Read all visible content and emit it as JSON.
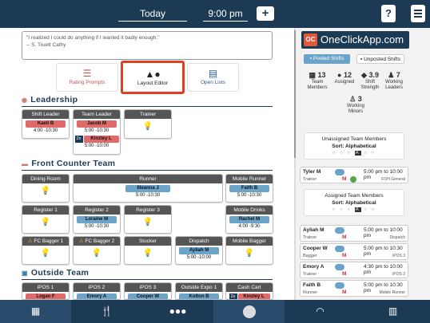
{
  "header": {
    "date": "Today",
    "time": "9:00 pm",
    "add_label": "+",
    "help_label": "?",
    "menu_icon": "hamburger-icon"
  },
  "quote": {
    "line1": "\"I realized I could do anything if I wanted it badly enough.\"",
    "line2": "-- S. Truett Cathy"
  },
  "tabs": [
    {
      "label": "Rating Prompts",
      "icon": "checklist-icon"
    },
    {
      "label": "Layout Editor",
      "icon": "shapes-icon"
    },
    {
      "label": "Open Lists",
      "icon": "clipboard-icon"
    }
  ],
  "sections": {
    "leadership": "Leadership",
    "front_counter": "Front Counter Team",
    "outside": "Outside Team"
  },
  "leadership": {
    "shift_leader": {
      "title": "Shift Leader",
      "name": "Kaeli B",
      "time": "4:00 -10:30"
    },
    "team_leader": {
      "title": "Team Leader",
      "name1": "Jacob M",
      "time1": "5:00 -10:30",
      "multi": "2x",
      "name2": "Kinzley L",
      "time2": "5:00 -10:00"
    },
    "trainer": {
      "title": "Trainer"
    }
  },
  "front_counter": {
    "dining_room": "Dining Room",
    "runner": {
      "title": "Runner",
      "name": "Illeanna J",
      "time": "5:00 -10:30"
    },
    "mobile_runner": {
      "title": "Mobile Runner",
      "name": "Faith B",
      "time": "5:00 -10:30"
    },
    "register1": "Register 1",
    "register2": {
      "title": "Register 2",
      "name": "Loraine M",
      "time": "5:00 -10:30"
    },
    "register3": "Register 3",
    "mobile_drinks": {
      "title": "Mobile Drinks",
      "name": "Rachel M",
      "time": "4:00 -9:30"
    },
    "fc_bagger1": "FC Bagger 1",
    "fc_bagger2": "FC Bagger 2",
    "stocker": "Stocker",
    "dispatch": {
      "title": "Dispatch",
      "name": "Ayliah M",
      "time": "5:00 -10:00"
    },
    "mobile_bagger": "Mobile Bagger"
  },
  "outside": {
    "ipos1": {
      "title": "iPOS 1",
      "name": "Logan F"
    },
    "ipos2": {
      "title": "iPOS 2",
      "name": "Emory A"
    },
    "ipos3": {
      "title": "iPOS 3",
      "name": "Cooper W"
    },
    "outside_expo1": {
      "title": "Outside Expo 1",
      "name": "Kolton B"
    },
    "cash_cart": {
      "title": "Cash Cart",
      "multi": "2x",
      "name": "Kinzley L"
    }
  },
  "ad": {
    "logo": "OC",
    "text": "OneClickApp.com"
  },
  "shift_toggle": {
    "posted": "Posted Shifts",
    "unposted": "Unposted Shifts"
  },
  "stats": [
    {
      "value": "13",
      "label": "Team Members"
    },
    {
      "value": "12",
      "label": "Assigned"
    },
    {
      "value": "3.9",
      "label": "Shift Strength"
    },
    {
      "value": "7",
      "label": "Working Leaders"
    },
    {
      "value": "3",
      "label": "Working Minors"
    }
  ],
  "unassigned": {
    "title": "Unassigned Team Members",
    "sort": "Sort: Alphabetical",
    "dots": "○ ○ ○",
    "current": "A",
    "dots2": "○ ○"
  },
  "assigned": {
    "title": "Assigned Team Members",
    "sort": "Sort: Alphabetical",
    "dots": "○ ○ ○",
    "current": "A",
    "dots2": "○ ○"
  },
  "members": [
    {
      "name": "Tyler M",
      "role": "Trainer",
      "mark": "M",
      "time": "5:00 pm to 10:00 pm",
      "position": "FOH General"
    },
    {
      "name": "Ayliah M",
      "role": "Trainer",
      "mark": "M",
      "time": "5:00 pm to 10:00 pm",
      "position": "Dispatch"
    },
    {
      "name": "Cooper W",
      "role": "Bagger",
      "mark": "M",
      "time": "5:00 pm to 10:30 pm",
      "position": "iPOS 3"
    },
    {
      "name": "Emory A",
      "role": "Trainer",
      "mark": "M",
      "time": "4:30 pm to 10:00 pm",
      "position": "iPOS 2"
    },
    {
      "name": "Faith B",
      "role": "Runner",
      "mark": "M",
      "time": "5:00 pm to 10:30 pm",
      "position": "Mobile Runner"
    }
  ],
  "bottom_nav": [
    {
      "icon": "calendar-icon"
    },
    {
      "icon": "utensils-icon"
    },
    {
      "icon": "team-icon"
    },
    {
      "icon": "logo-icon"
    },
    {
      "icon": "cloche-icon"
    },
    {
      "icon": "building-icon"
    }
  ],
  "colors": {
    "navy": "#1d3a55",
    "chip_red": "#e06a6a",
    "chip_blue": "#6ba3c9",
    "highlight": "#e0401f"
  }
}
